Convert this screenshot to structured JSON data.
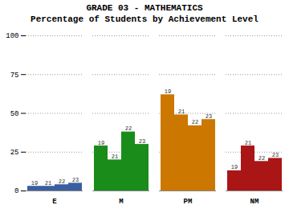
{
  "chart_data": {
    "type": "bar",
    "title": "GRADE 03 - MATHEMATICS",
    "subtitle": "Percentage of Students by Achievement Level",
    "categories": [
      "E",
      "M",
      "PM",
      "NM"
    ],
    "colors": [
      "#3a5fa0",
      "#1a8c1a",
      "#cc7700",
      "#aa1515"
    ],
    "series": [
      {
        "name": "19",
        "values": [
          3,
          29,
          62,
          13
        ]
      },
      {
        "name": "21",
        "values": [
          3,
          20,
          49,
          29
        ]
      },
      {
        "name": "22",
        "values": [
          4,
          38,
          42,
          19
        ]
      },
      {
        "name": "23",
        "values": [
          5,
          30,
          46,
          21
        ]
      }
    ],
    "ylim": [
      0,
      100
    ],
    "yticks": [
      0,
      25,
      50,
      75,
      100
    ],
    "grid": true
  }
}
